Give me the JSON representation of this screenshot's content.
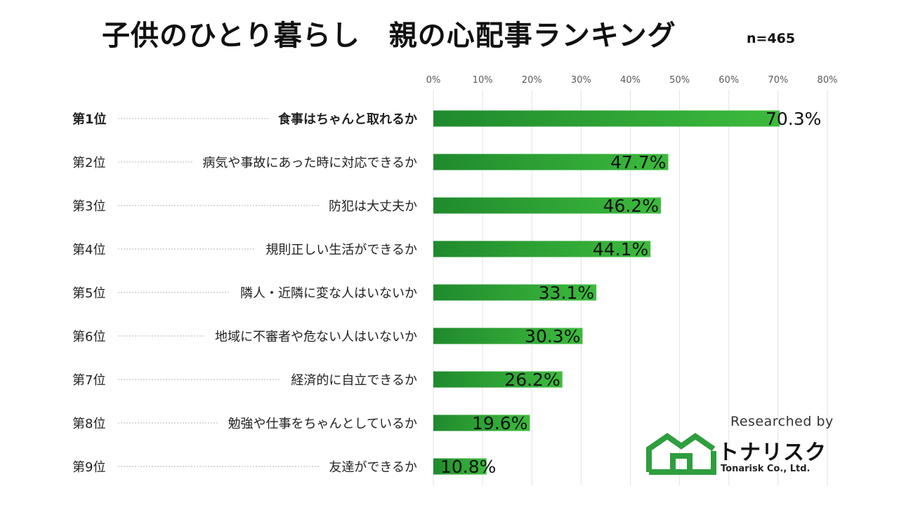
{
  "header": {
    "title": "子供のひとり暮らし　親の心配事ランキング",
    "sample_size": "n=465"
  },
  "branding": {
    "researched_by": "Researched by",
    "company_name": "トナリスク",
    "company_name_en": "Tonarisk Co., Ltd.",
    "brand_color": "#2e9e3e"
  },
  "chart_data": {
    "type": "bar",
    "orientation": "horizontal",
    "title": "子供のひとり暮らし　親の心配事ランキング",
    "xlim": [
      0,
      80
    ],
    "x_ticks": [
      "0%",
      "10%",
      "20%",
      "30%",
      "40%",
      "50%",
      "60%",
      "70%",
      "80%"
    ],
    "grid": true,
    "ranks": [
      "第1位",
      "第2位",
      "第3位",
      "第4位",
      "第5位",
      "第6位",
      "第7位",
      "第8位",
      "第9位"
    ],
    "categories": [
      "食事はちゃんと取れるか",
      "病気や事故にあった時に対応できるか",
      "防犯は大丈夫か",
      "規則正しい生活ができるか",
      "隣人・近隣に変な人はいないか",
      "地域に不審者や危ない人はいないか",
      "経済的に自立できるか",
      "勉強や仕事をちゃんとしているか",
      "友達ができるか"
    ],
    "values": [
      70.3,
      47.7,
      46.2,
      44.1,
      33.1,
      30.3,
      26.2,
      19.6,
      10.8
    ],
    "value_labels": [
      "70.3%",
      "47.7%",
      "46.2%",
      "44.1%",
      "33.1%",
      "30.3%",
      "26.2%",
      "19.6%",
      "10.8%"
    ],
    "bar_color_start": "#1f8a2d",
    "bar_color_end": "#3dbb3d"
  }
}
